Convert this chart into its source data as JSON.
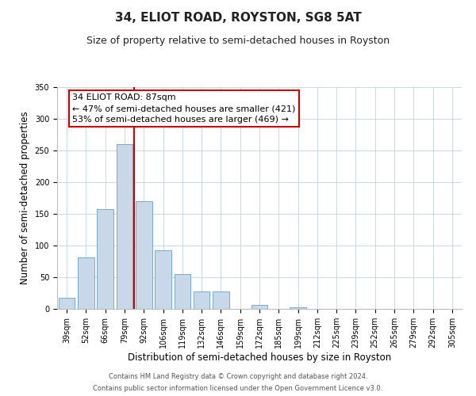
{
  "title": "34, ELIOT ROAD, ROYSTON, SG8 5AT",
  "subtitle": "Size of property relative to semi-detached houses in Royston",
  "xlabel": "Distribution of semi-detached houses by size in Royston",
  "ylabel": "Number of semi-detached properties",
  "bar_labels": [
    "39sqm",
    "52sqm",
    "66sqm",
    "79sqm",
    "92sqm",
    "106sqm",
    "119sqm",
    "132sqm",
    "146sqm",
    "159sqm",
    "172sqm",
    "185sqm",
    "199sqm",
    "212sqm",
    "225sqm",
    "239sqm",
    "252sqm",
    "265sqm",
    "279sqm",
    "292sqm",
    "305sqm"
  ],
  "bar_values": [
    18,
    81,
    158,
    260,
    170,
    92,
    55,
    28,
    28,
    0,
    6,
    0,
    2,
    0,
    0,
    0,
    0,
    0,
    0,
    0,
    0
  ],
  "bar_color": "#c8d8e8",
  "bar_edge_color": "#7aaac8",
  "vline_x": 4,
  "vline_color": "#cc0000",
  "ylim": [
    0,
    350
  ],
  "annotation_title": "34 ELIOT ROAD: 87sqm",
  "annotation_line1": "← 47% of semi-detached houses are smaller (421)",
  "annotation_line2": "53% of semi-detached houses are larger (469) →",
  "annotation_box_color": "#ffffff",
  "annotation_box_edge": "#cc0000",
  "footer_line1": "Contains HM Land Registry data © Crown copyright and database right 2024.",
  "footer_line2": "Contains public sector information licensed under the Open Government Licence v3.0.",
  "title_fontsize": 11,
  "subtitle_fontsize": 9,
  "axis_label_fontsize": 8.5,
  "tick_fontsize": 7,
  "annotation_fontsize": 8,
  "footer_fontsize": 6,
  "background_color": "#ffffff",
  "grid_color": "#c8d8e8",
  "yticks": [
    0,
    50,
    100,
    150,
    200,
    250,
    300,
    350
  ]
}
